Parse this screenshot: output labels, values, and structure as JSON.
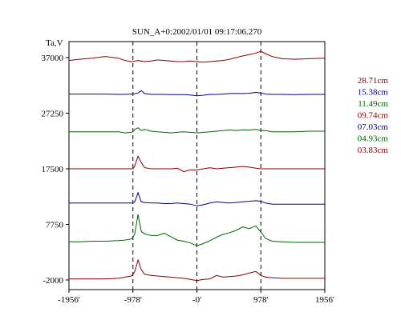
{
  "chart_data": {
    "type": "line",
    "title": "SUN_A+0:2002/01/01 09:17:06.270",
    "ylabel": "Ta,V",
    "xlim": [
      -1956,
      1956
    ],
    "ylim": [
      -2000,
      37000
    ],
    "xticks": [
      {
        "value": -1956,
        "label": "-1956'"
      },
      {
        "value": -978,
        "label": "-978'"
      },
      {
        "value": 0,
        "label": "-0'"
      },
      {
        "value": 978,
        "label": "978'"
      },
      {
        "value": 1956,
        "label": "1956'"
      }
    ],
    "yticks": [
      {
        "value": 37000,
        "label": "37000"
      },
      {
        "value": 27250,
        "label": "27250"
      },
      {
        "value": 17500,
        "label": "17500"
      },
      {
        "value": 7750,
        "label": "7750"
      },
      {
        "value": -2000,
        "label": "-2000"
      }
    ],
    "vlines": [
      -978,
      0,
      978
    ],
    "x": [
      -1956,
      -1800,
      -1600,
      -1400,
      -1200,
      -1100,
      -1000,
      -978,
      -950,
      -900,
      -850,
      -800,
      -700,
      -600,
      -500,
      -400,
      -300,
      -200,
      -100,
      0,
      100,
      200,
      300,
      400,
      500,
      600,
      700,
      800,
      900,
      978,
      1050,
      1150,
      1300,
      1500,
      1700,
      1956
    ],
    "series": [
      {
        "name": "28.71cm",
        "color": "#8b0000",
        "values": [
          36500,
          36700,
          36900,
          37200,
          36900,
          36500,
          36300,
          36300,
          36400,
          36500,
          36400,
          36300,
          36400,
          36600,
          36500,
          36400,
          36300,
          36300,
          36400,
          36300,
          36200,
          36300,
          36400,
          36500,
          36700,
          37000,
          37300,
          37500,
          37800,
          38100,
          37700,
          37200,
          36800,
          36700,
          36800,
          36900
        ]
      },
      {
        "name": "15.38cm",
        "color": "#00008b",
        "values": [
          30600,
          30600,
          30600,
          30600,
          30550,
          30550,
          30600,
          30600,
          30650,
          30800,
          31200,
          30700,
          30550,
          30550,
          30550,
          30500,
          30500,
          30500,
          30450,
          30300,
          30400,
          30550,
          30550,
          30600,
          30700,
          30700,
          30700,
          30750,
          30900,
          30800,
          30600,
          30550,
          30550,
          30500,
          30550,
          30550
        ]
      },
      {
        "name": "11.49cm",
        "color": "#006400",
        "values": [
          24000,
          24000,
          24000,
          24000,
          24000,
          23800,
          23900,
          24000,
          24400,
          24700,
          24200,
          24400,
          24100,
          24000,
          23900,
          23800,
          23900,
          24000,
          23900,
          23800,
          23900,
          24000,
          24100,
          24200,
          24300,
          24200,
          24300,
          24300,
          24400,
          24200,
          24200,
          24000,
          24000,
          24000,
          24100,
          24100
        ]
      },
      {
        "name": "09.74cm",
        "color": "#8b0000",
        "values": [
          17500,
          17500,
          17500,
          17500,
          17500,
          17500,
          17500,
          17500,
          18000,
          19700,
          18600,
          17700,
          17500,
          17500,
          17500,
          17500,
          17600,
          17000,
          17300,
          17300,
          17500,
          17700,
          17500,
          17600,
          17700,
          17800,
          17900,
          17800,
          17600,
          17500,
          17500,
          17500,
          17500,
          17500,
          17500,
          17500
        ]
      },
      {
        "name": "07.03cm",
        "color": "#00008b",
        "values": [
          11500,
          11500,
          11500,
          11500,
          11500,
          11500,
          11500,
          11500,
          11700,
          13300,
          11700,
          11600,
          11500,
          11500,
          11400,
          11400,
          11500,
          11400,
          11300,
          11000,
          11200,
          11500,
          11700,
          11600,
          11500,
          11600,
          11700,
          11800,
          11900,
          11800,
          11500,
          11300,
          11300,
          11300,
          11300,
          11300
        ]
      },
      {
        "name": "04.93cm",
        "color": "#006400",
        "values": [
          4700,
          4700,
          4800,
          4800,
          4900,
          5000,
          5200,
          5500,
          6100,
          9500,
          6500,
          6100,
          5800,
          5800,
          6200,
          5600,
          5000,
          4800,
          4500,
          4000,
          4400,
          4900,
          5500,
          6000,
          6300,
          6700,
          7300,
          7000,
          7500,
          6400,
          5300,
          4800,
          4700,
          4600,
          4600,
          4600
        ]
      },
      {
        "name": "03.83cm",
        "color": "#8b0000",
        "values": [
          -1800,
          -1800,
          -1800,
          -1800,
          -1700,
          -1500,
          -1300,
          -1000,
          -500,
          1500,
          -200,
          -1000,
          -1200,
          -1300,
          -1400,
          -1500,
          -1600,
          -1700,
          -1900,
          -2100,
          -1900,
          -1800,
          -1200,
          -1500,
          -1400,
          -1300,
          -1100,
          -800,
          -500,
          -1200,
          -1500,
          -1600,
          -1700,
          -1700,
          -1700,
          -1700
        ]
      }
    ],
    "grid": false,
    "legend": "right"
  }
}
